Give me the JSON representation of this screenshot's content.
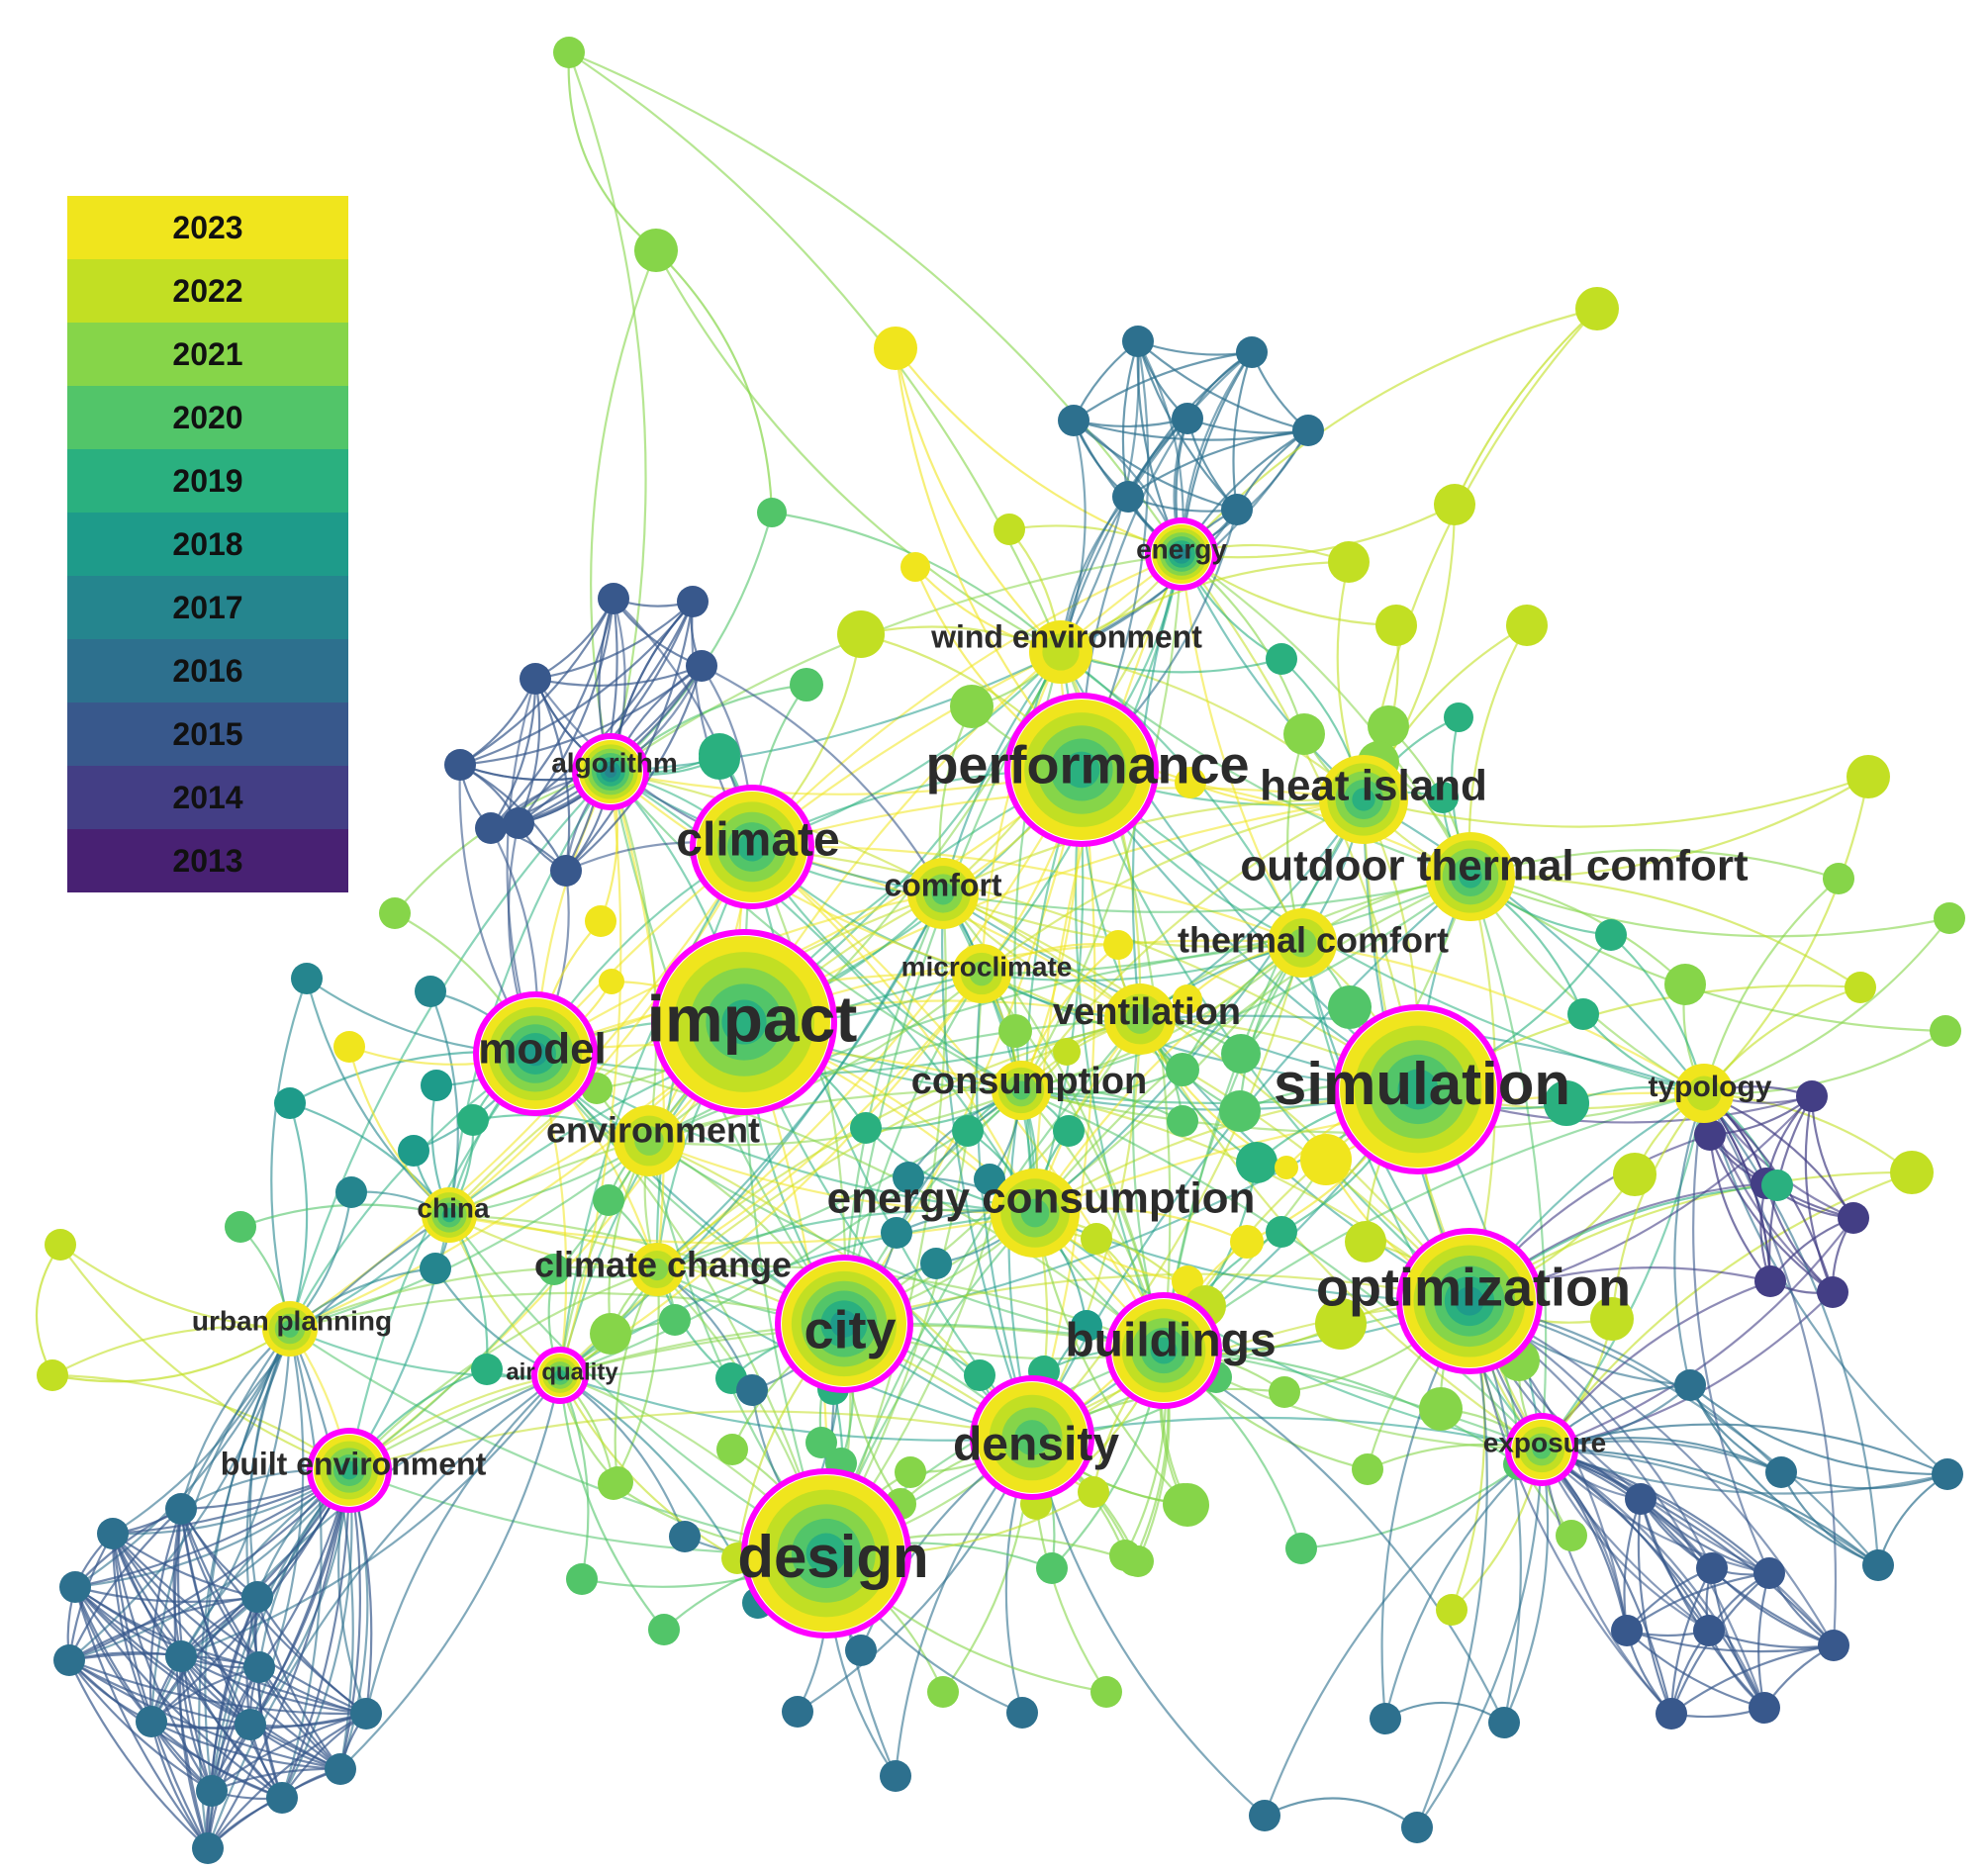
{
  "legend": {
    "years": [
      {
        "label": "2023",
        "color": "#f0e51d"
      },
      {
        "label": "2022",
        "color": "#c2df23"
      },
      {
        "label": "2021",
        "color": "#86d549"
      },
      {
        "label": "2020",
        "color": "#52c569"
      },
      {
        "label": "2019",
        "color": "#2ab07f"
      },
      {
        "label": "2018",
        "color": "#1e9b8a"
      },
      {
        "label": "2017",
        "color": "#25858e"
      },
      {
        "label": "2016",
        "color": "#2d708e"
      },
      {
        "label": "2015",
        "color": "#38588c"
      },
      {
        "label": "2014",
        "color": "#433e85"
      },
      {
        "label": "2013",
        "color": "#482173"
      }
    ]
  },
  "network": {
    "keywords": [
      "impact",
      "simulation",
      "design",
      "performance",
      "optimization",
      "city",
      "climate",
      "density",
      "buildings",
      "model",
      "energy consumption",
      "heat island",
      "outdoor thermal comfort",
      "thermal comfort",
      "ventilation",
      "consumption",
      "environment",
      "comfort",
      "microclimate",
      "wind environment",
      "energy",
      "algorithm",
      "china",
      "climate change",
      "urban planning",
      "air quality",
      "built environment",
      "exposure",
      "typology"
    ],
    "highlight_color": "#ff00ff"
  }
}
